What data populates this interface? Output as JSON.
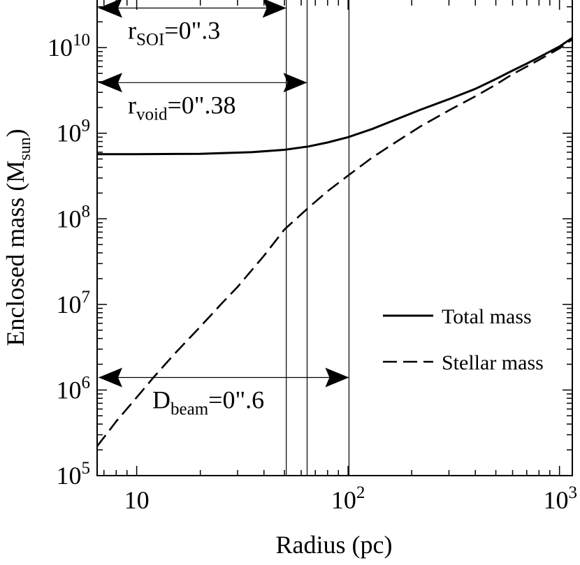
{
  "chart_data": {
    "type": "line",
    "title": "",
    "xlabel": "Radius (pc)",
    "ylabel_main": "Enclosed mass (M",
    "ylabel_sub": "sun",
    "ylabel_close": ")",
    "xscale": "log",
    "yscale": "log",
    "xlim": [
      6.5,
      1150
    ],
    "ylim": [
      100000,
      36000000000
    ],
    "x_ticks": [
      {
        "value": 10,
        "base": "10",
        "exp": ""
      },
      {
        "value": 100,
        "base": "10",
        "exp": "2"
      },
      {
        "value": 1000,
        "base": "10",
        "exp": "3"
      }
    ],
    "y_ticks": [
      {
        "value": 100000,
        "base": "10",
        "exp": "5"
      },
      {
        "value": 1000000,
        "base": "10",
        "exp": "6"
      },
      {
        "value": 10000000,
        "base": "10",
        "exp": "7"
      },
      {
        "value": 100000000,
        "base": "10",
        "exp": "8"
      },
      {
        "value": 1000000000,
        "base": "10",
        "exp": "9"
      },
      {
        "value": 10000000000,
        "base": "10",
        "exp": "10"
      }
    ],
    "series": [
      {
        "name": "Total mass",
        "style": "solid",
        "x": [
          6.5,
          10,
          20,
          35,
          50,
          65,
          80,
          100,
          130,
          170,
          220,
          300,
          400,
          500,
          600,
          700,
          800,
          1000,
          1150
        ],
        "y": [
          570000000,
          570000000,
          575000000,
          600000000,
          640000000,
          700000000,
          780000000,
          900000000,
          1120000000,
          1460000000,
          1880000000,
          2500000000,
          3300000000,
          4300000000,
          5400000000,
          6500000000,
          7700000000,
          10300000000,
          13000000000
        ]
      },
      {
        "name": "Stellar mass",
        "style": "dashed",
        "x": [
          6.5,
          8,
          10,
          12,
          15,
          20,
          25,
          30,
          40,
          50,
          65,
          80,
          100,
          130,
          170,
          220,
          300,
          400,
          500,
          600,
          700,
          800,
          1000,
          1150
        ],
        "y": [
          220000,
          430000,
          820000,
          1400000,
          2600000,
          5500000,
          10000000,
          16000000,
          37000000,
          75000000,
          135000000,
          210000000,
          320000000,
          520000000,
          800000000,
          1200000000,
          1850000000,
          2700000000,
          3700000000,
          4900000000,
          6000000000,
          7200000000,
          9800000000,
          12500000000
        ]
      }
    ],
    "vlines": [
      51,
      64,
      101
    ],
    "annotations": [
      {
        "name": "r-soi",
        "x_end": 51,
        "y": 29000000000,
        "label_base": "r",
        "label_sub": "SOI",
        "label_rest": "=0\".3"
      },
      {
        "name": "r-void",
        "x_end": 64,
        "y": 3900000000,
        "label_base": "r",
        "label_sub": "void",
        "label_rest": "=0\".38"
      },
      {
        "name": "d-beam",
        "x_end": 101,
        "y": 1400000,
        "label_base": "D",
        "label_sub": "beam",
        "label_rest": "=0\".6"
      }
    ],
    "legend": {
      "placement": "lower-right",
      "entries": [
        {
          "label": "Total mass",
          "style": "solid"
        },
        {
          "label": "Stellar mass",
          "style": "dashed"
        }
      ]
    }
  }
}
